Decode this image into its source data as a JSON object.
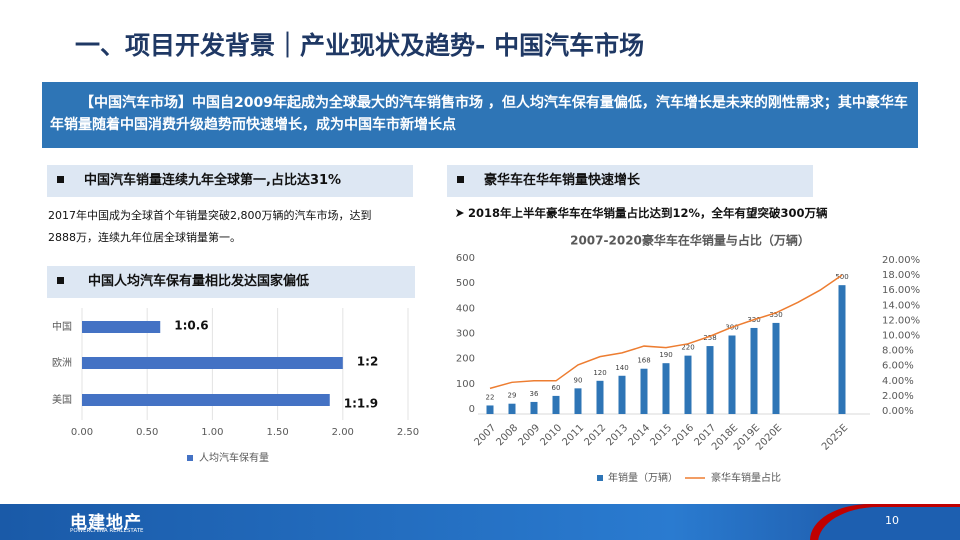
{
  "header": {
    "title": "一、项目开发背景｜产业现状及趋势- 中国汽车市场"
  },
  "banner": "【中国汽车市场】中国自2009年起成为全球最大的汽车销售市场 ，但人均汽车保有量偏低，汽车增长是未来的刚性需求；其中豪华车年销量随着中国消费升级趋势而快速增长，成为中国车市新增长点",
  "left": {
    "heading1": "中国汽车销量连续九年全球第一,占比达31%",
    "paragraph": "2017年中国成为全球首个年销量突破2,800万辆的汽车市场，达到2888万，连续九年位居全球销量第一。",
    "heading2": "中国人均汽车保有量相比发达国家偏低"
  },
  "right": {
    "heading": "豪华车在华年销量快速增长",
    "bullet": "2018年上半年豪华车在华销量占比达到12%，全年有望突破300万辆"
  },
  "footer": {
    "logo": "电建地产",
    "logo_sub": "POWERCHINA REALESTATE",
    "page": "10"
  },
  "chart_data": [
    {
      "type": "hbar",
      "categories": [
        "中国",
        "欧洲",
        "美国"
      ],
      "series": [
        {
          "name": "人均汽车保有量",
          "color": "#4472c4",
          "values": [
            0.6,
            2,
            1.9
          ],
          "value_labels": [
            "1:0.6",
            "1:2",
            "1:1.9"
          ]
        }
      ],
      "xlim": [
        0,
        2.5
      ],
      "xticks": [
        {
          "value": 0,
          "label": "0.00"
        },
        {
          "value": 0.5,
          "label": "0.50"
        },
        {
          "value": 1,
          "label": "1.00"
        },
        {
          "value": 1.5,
          "label": "1.50"
        },
        {
          "value": 2,
          "label": "2.00"
        },
        {
          "value": 2.5,
          "label": "2.50"
        }
      ],
      "grid": true
    },
    {
      "type": "bar_line",
      "title": "2007-2020豪华车在华销量与占比（万辆）",
      "categories": [
        "2007",
        "2008",
        "2009",
        "2010",
        "2011",
        "2012",
        "2013",
        "2014",
        "2015",
        "2016",
        "2017",
        "2018E",
        "2019E",
        "2020E",
        null,
        null,
        "2025E"
      ],
      "series": [
        {
          "name": "年销量（万辆）",
          "color": "#2e75b6",
          "values": [
            22,
            29,
            36,
            60,
            90,
            120,
            140,
            168,
            190,
            220,
            258,
            300,
            330,
            350,
            null,
            null,
            500
          ]
        },
        {
          "name": "豪华车销量占比",
          "color": "#ed7d31",
          "axis": "y2",
          "values": [
            3.0,
            3.8,
            4.0,
            4.0,
            6.1,
            7.2,
            7.7,
            8.6,
            8.4,
            8.9,
            9.9,
            11.1,
            12.1,
            13.0,
            14.4,
            16.0,
            18.0
          ]
        }
      ],
      "ylim": [
        0,
        600
      ],
      "yticks": [
        0,
        100,
        200,
        300,
        400,
        500,
        600
      ],
      "y2lim": [
        0,
        20
      ],
      "y2ticks": [
        {
          "value": 0,
          "label": "0.00%"
        },
        {
          "value": 2,
          "label": "2.00%"
        },
        {
          "value": 4,
          "label": "4.00%"
        },
        {
          "value": 6,
          "label": "6.00%"
        },
        {
          "value": 8,
          "label": "8.00%"
        },
        {
          "value": 10,
          "label": "10.00%"
        },
        {
          "value": 12,
          "label": "12.00%"
        },
        {
          "value": 14,
          "label": "14.00%"
        },
        {
          "value": 16,
          "label": "16.00%"
        },
        {
          "value": 18,
          "label": "18.00%"
        },
        {
          "value": 20,
          "label": "20.00%"
        }
      ]
    }
  ]
}
